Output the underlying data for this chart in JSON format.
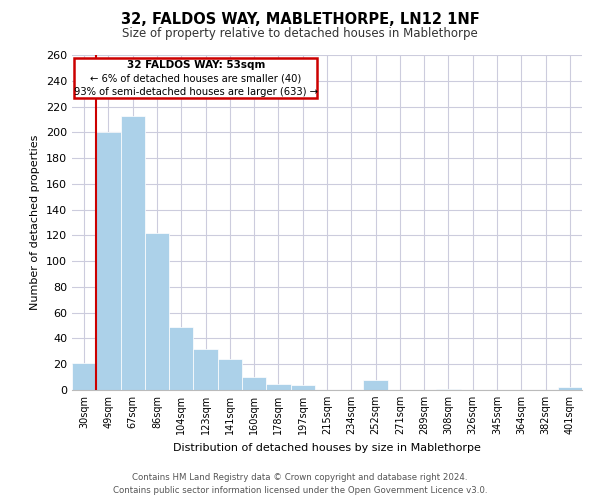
{
  "title": "32, FALDOS WAY, MABLETHORPE, LN12 1NF",
  "subtitle": "Size of property relative to detached houses in Mablethorpe",
  "xlabel": "Distribution of detached houses by size in Mablethorpe",
  "ylabel": "Number of detached properties",
  "categories": [
    "30sqm",
    "49sqm",
    "67sqm",
    "86sqm",
    "104sqm",
    "123sqm",
    "141sqm",
    "160sqm",
    "178sqm",
    "197sqm",
    "215sqm",
    "234sqm",
    "252sqm",
    "271sqm",
    "289sqm",
    "308sqm",
    "326sqm",
    "345sqm",
    "364sqm",
    "382sqm",
    "401sqm"
  ],
  "values": [
    21,
    200,
    213,
    122,
    49,
    32,
    24,
    10,
    5,
    4,
    0,
    0,
    8,
    0,
    0,
    1,
    0,
    0,
    0,
    0,
    2
  ],
  "bar_color": "#acd1e9",
  "bar_edge_color": "#ffffff",
  "marker_color": "#cc0000",
  "marker_index": 1,
  "ylim": [
    0,
    260
  ],
  "yticks": [
    0,
    20,
    40,
    60,
    80,
    100,
    120,
    140,
    160,
    180,
    200,
    220,
    240,
    260
  ],
  "annotation_title": "32 FALDOS WAY: 53sqm",
  "annotation_line1": "← 6% of detached houses are smaller (40)",
  "annotation_line2": "93% of semi-detached houses are larger (633) →",
  "footer_line1": "Contains HM Land Registry data © Crown copyright and database right 2024.",
  "footer_line2": "Contains public sector information licensed under the Open Government Licence v3.0.",
  "background_color": "#ffffff",
  "grid_color": "#ccccdd",
  "title_fontsize": 10.5,
  "subtitle_fontsize": 8.5,
  "ylabel_fontsize": 8,
  "xlabel_fontsize": 8,
  "ytick_fontsize": 8,
  "xtick_fontsize": 7
}
